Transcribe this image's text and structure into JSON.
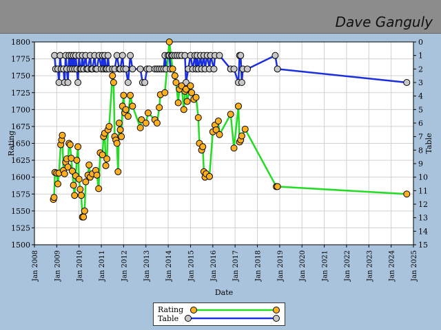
{
  "player": {
    "name": "Dave Ganguly"
  },
  "colors": {
    "rating_line": "#22dd22",
    "rating_marker": "#ffb020",
    "table_line": "#1a2fe0",
    "table_marker": "#c8c8c8",
    "plot_bg": "#ffffff",
    "grid": "#d0d0d0"
  },
  "chart_data": {
    "type": "line",
    "title": "",
    "xlabel": "Date",
    "ylabel": "Rating",
    "y2label": "Table",
    "xlim": [
      2008,
      2025
    ],
    "ylim": [
      1500,
      1800
    ],
    "y2lim": [
      0,
      15
    ],
    "x_ticks": [
      "Jan 2008",
      "Jan 2009",
      "Jan 2010",
      "Jan 2011",
      "Jan 2012",
      "Jan 2013",
      "Jan 2014",
      "Jan 2015",
      "Jan 2016",
      "Jan 2017",
      "Jan 2018",
      "Jan 2019",
      "Jan 2020",
      "Jan 2021",
      "Jan 2022",
      "Jan 2023",
      "Jan 2024",
      "Jan 2025"
    ],
    "y_ticks": [
      1500,
      1525,
      1550,
      1575,
      1600,
      1625,
      1650,
      1675,
      1700,
      1725,
      1750,
      1775,
      1800
    ],
    "y2_ticks": [
      0,
      1,
      2,
      3,
      4,
      5,
      6,
      7,
      8,
      9,
      10,
      11,
      12,
      13,
      14,
      15
    ],
    "series": [
      {
        "name": "Rating",
        "axis": "left",
        "points": [
          [
            2008.85,
            1567
          ],
          [
            2008.88,
            1570
          ],
          [
            2008.92,
            1607
          ],
          [
            2009.0,
            1606
          ],
          [
            2009.05,
            1590
          ],
          [
            2009.1,
            1606
          ],
          [
            2009.18,
            1648
          ],
          [
            2009.22,
            1655
          ],
          [
            2009.25,
            1662
          ],
          [
            2009.3,
            1610
          ],
          [
            2009.35,
            1605
          ],
          [
            2009.4,
            1622
          ],
          [
            2009.45,
            1627
          ],
          [
            2009.5,
            1615
          ],
          [
            2009.55,
            1650
          ],
          [
            2009.6,
            1648
          ],
          [
            2009.65,
            1628
          ],
          [
            2009.7,
            1609
          ],
          [
            2009.75,
            1588
          ],
          [
            2009.8,
            1573
          ],
          [
            2009.85,
            1602
          ],
          [
            2009.9,
            1625
          ],
          [
            2009.95,
            1645
          ],
          [
            2010.0,
            1597
          ],
          [
            2010.05,
            1582
          ],
          [
            2010.1,
            1573
          ],
          [
            2010.15,
            1541
          ],
          [
            2010.2,
            1541
          ],
          [
            2010.25,
            1550
          ],
          [
            2010.3,
            1593
          ],
          [
            2010.4,
            1603
          ],
          [
            2010.45,
            1618
          ],
          [
            2010.5,
            1600
          ],
          [
            2010.6,
            1605
          ],
          [
            2010.75,
            1610
          ],
          [
            2010.8,
            1603
          ],
          [
            2010.88,
            1583
          ],
          [
            2010.95,
            1636
          ],
          [
            2011.05,
            1633
          ],
          [
            2011.1,
            1660
          ],
          [
            2011.15,
            1665
          ],
          [
            2011.2,
            1617
          ],
          [
            2011.25,
            1627
          ],
          [
            2011.3,
            1670
          ],
          [
            2011.35,
            1675
          ],
          [
            2011.5,
            1750
          ],
          [
            2011.55,
            1740
          ],
          [
            2011.6,
            1660
          ],
          [
            2011.65,
            1655
          ],
          [
            2011.7,
            1650
          ],
          [
            2011.75,
            1608
          ],
          [
            2011.8,
            1680
          ],
          [
            2011.85,
            1670
          ],
          [
            2011.9,
            1660
          ],
          [
            2011.95,
            1705
          ],
          [
            2012.0,
            1721
          ],
          [
            2012.05,
            1695
          ],
          [
            2012.1,
            1700
          ],
          [
            2012.2,
            1690
          ],
          [
            2012.3,
            1721
          ],
          [
            2012.4,
            1705
          ],
          [
            2012.75,
            1673
          ],
          [
            2012.8,
            1685
          ],
          [
            2013.0,
            1680
          ],
          [
            2013.1,
            1695
          ],
          [
            2013.4,
            1685
          ],
          [
            2013.5,
            1680
          ],
          [
            2013.6,
            1703
          ],
          [
            2013.65,
            1722
          ],
          [
            2013.85,
            1725
          ],
          [
            2014.05,
            1800
          ],
          [
            2014.2,
            1760
          ],
          [
            2014.3,
            1750
          ],
          [
            2014.35,
            1740
          ],
          [
            2014.45,
            1710
          ],
          [
            2014.5,
            1730
          ],
          [
            2014.6,
            1735
          ],
          [
            2014.7,
            1700
          ],
          [
            2014.75,
            1727
          ],
          [
            2014.8,
            1730
          ],
          [
            2014.85,
            1712
          ],
          [
            2015.0,
            1735
          ],
          [
            2015.05,
            1725
          ],
          [
            2015.15,
            1715
          ],
          [
            2015.25,
            1718
          ],
          [
            2015.35,
            1688
          ],
          [
            2015.4,
            1650
          ],
          [
            2015.5,
            1640
          ],
          [
            2015.55,
            1645
          ],
          [
            2015.6,
            1608
          ],
          [
            2015.65,
            1600
          ],
          [
            2015.7,
            1605
          ],
          [
            2015.85,
            1601
          ],
          [
            2016.0,
            1667
          ],
          [
            2016.1,
            1677
          ],
          [
            2016.15,
            1670
          ],
          [
            2016.25,
            1683
          ],
          [
            2016.3,
            1663
          ],
          [
            2016.8,
            1693
          ],
          [
            2016.95,
            1643
          ],
          [
            2017.15,
            1705
          ],
          [
            2017.2,
            1652
          ],
          [
            2017.25,
            1655
          ],
          [
            2017.3,
            1661
          ],
          [
            2017.45,
            1671
          ],
          [
            2018.85,
            1586
          ],
          [
            2018.9,
            1586
          ],
          [
            2024.7,
            1575
          ]
        ]
      },
      {
        "name": "Table",
        "axis": "right",
        "points": [
          [
            2008.9,
            1
          ],
          [
            2008.95,
            2
          ],
          [
            2009.05,
            2
          ],
          [
            2009.1,
            3
          ],
          [
            2009.15,
            1
          ],
          [
            2009.2,
            2
          ],
          [
            2009.3,
            2
          ],
          [
            2009.35,
            3
          ],
          [
            2009.4,
            1
          ],
          [
            2009.45,
            2
          ],
          [
            2009.5,
            3
          ],
          [
            2009.55,
            1
          ],
          [
            2009.6,
            2
          ],
          [
            2009.65,
            1
          ],
          [
            2009.7,
            2
          ],
          [
            2009.75,
            1
          ],
          [
            2009.8,
            2
          ],
          [
            2009.85,
            1
          ],
          [
            2009.9,
            2
          ],
          [
            2009.95,
            3
          ],
          [
            2010.0,
            1
          ],
          [
            2010.05,
            2
          ],
          [
            2010.1,
            2
          ],
          [
            2010.15,
            1
          ],
          [
            2010.2,
            2
          ],
          [
            2010.3,
            1
          ],
          [
            2010.35,
            2
          ],
          [
            2010.4,
            2
          ],
          [
            2010.5,
            1
          ],
          [
            2010.55,
            2
          ],
          [
            2010.6,
            2
          ],
          [
            2010.7,
            1
          ],
          [
            2010.75,
            2
          ],
          [
            2010.8,
            2
          ],
          [
            2010.9,
            1
          ],
          [
            2011.0,
            2
          ],
          [
            2011.05,
            1
          ],
          [
            2011.1,
            2
          ],
          [
            2011.15,
            1
          ],
          [
            2011.2,
            2
          ],
          [
            2011.25,
            2
          ],
          [
            2011.3,
            1
          ],
          [
            2011.35,
            2
          ],
          [
            2011.5,
            2
          ],
          [
            2011.6,
            2
          ],
          [
            2011.7,
            1
          ],
          [
            2011.8,
            2
          ],
          [
            2011.85,
            2
          ],
          [
            2011.95,
            1
          ],
          [
            2012.0,
            2
          ],
          [
            2012.1,
            2
          ],
          [
            2012.2,
            3
          ],
          [
            2012.3,
            1
          ],
          [
            2012.4,
            2
          ],
          [
            2012.75,
            2
          ],
          [
            2012.85,
            3
          ],
          [
            2012.95,
            3
          ],
          [
            2013.05,
            2
          ],
          [
            2013.15,
            2
          ],
          [
            2013.4,
            2
          ],
          [
            2013.5,
            2
          ],
          [
            2013.6,
            2
          ],
          [
            2013.7,
            2
          ],
          [
            2013.8,
            2
          ],
          [
            2013.85,
            1
          ],
          [
            2013.9,
            2
          ],
          [
            2014.0,
            1
          ],
          [
            2014.05,
            1
          ],
          [
            2014.1,
            2
          ],
          [
            2014.15,
            1
          ],
          [
            2014.2,
            1
          ],
          [
            2014.3,
            1
          ],
          [
            2014.4,
            1
          ],
          [
            2014.5,
            1
          ],
          [
            2014.6,
            1
          ],
          [
            2014.75,
            1
          ],
          [
            2014.8,
            3
          ],
          [
            2014.9,
            2
          ],
          [
            2015.0,
            1
          ],
          [
            2015.1,
            2
          ],
          [
            2015.2,
            1
          ],
          [
            2015.25,
            2
          ],
          [
            2015.3,
            1
          ],
          [
            2015.35,
            2
          ],
          [
            2015.45,
            1
          ],
          [
            2015.5,
            2
          ],
          [
            2015.6,
            1
          ],
          [
            2015.65,
            2
          ],
          [
            2015.75,
            1
          ],
          [
            2015.85,
            2
          ],
          [
            2015.9,
            1
          ],
          [
            2016.05,
            2
          ],
          [
            2016.1,
            1
          ],
          [
            2016.3,
            1
          ],
          [
            2016.8,
            2
          ],
          [
            2016.95,
            2
          ],
          [
            2017.15,
            3
          ],
          [
            2017.2,
            1
          ],
          [
            2017.25,
            1
          ],
          [
            2017.3,
            3
          ],
          [
            2017.35,
            2
          ],
          [
            2017.55,
            2
          ],
          [
            2018.8,
            1
          ],
          [
            2018.9,
            2
          ],
          [
            2024.7,
            3
          ]
        ]
      }
    ],
    "legend": {
      "position": "bottom-center",
      "entries": [
        "Rating",
        "Table"
      ]
    }
  }
}
